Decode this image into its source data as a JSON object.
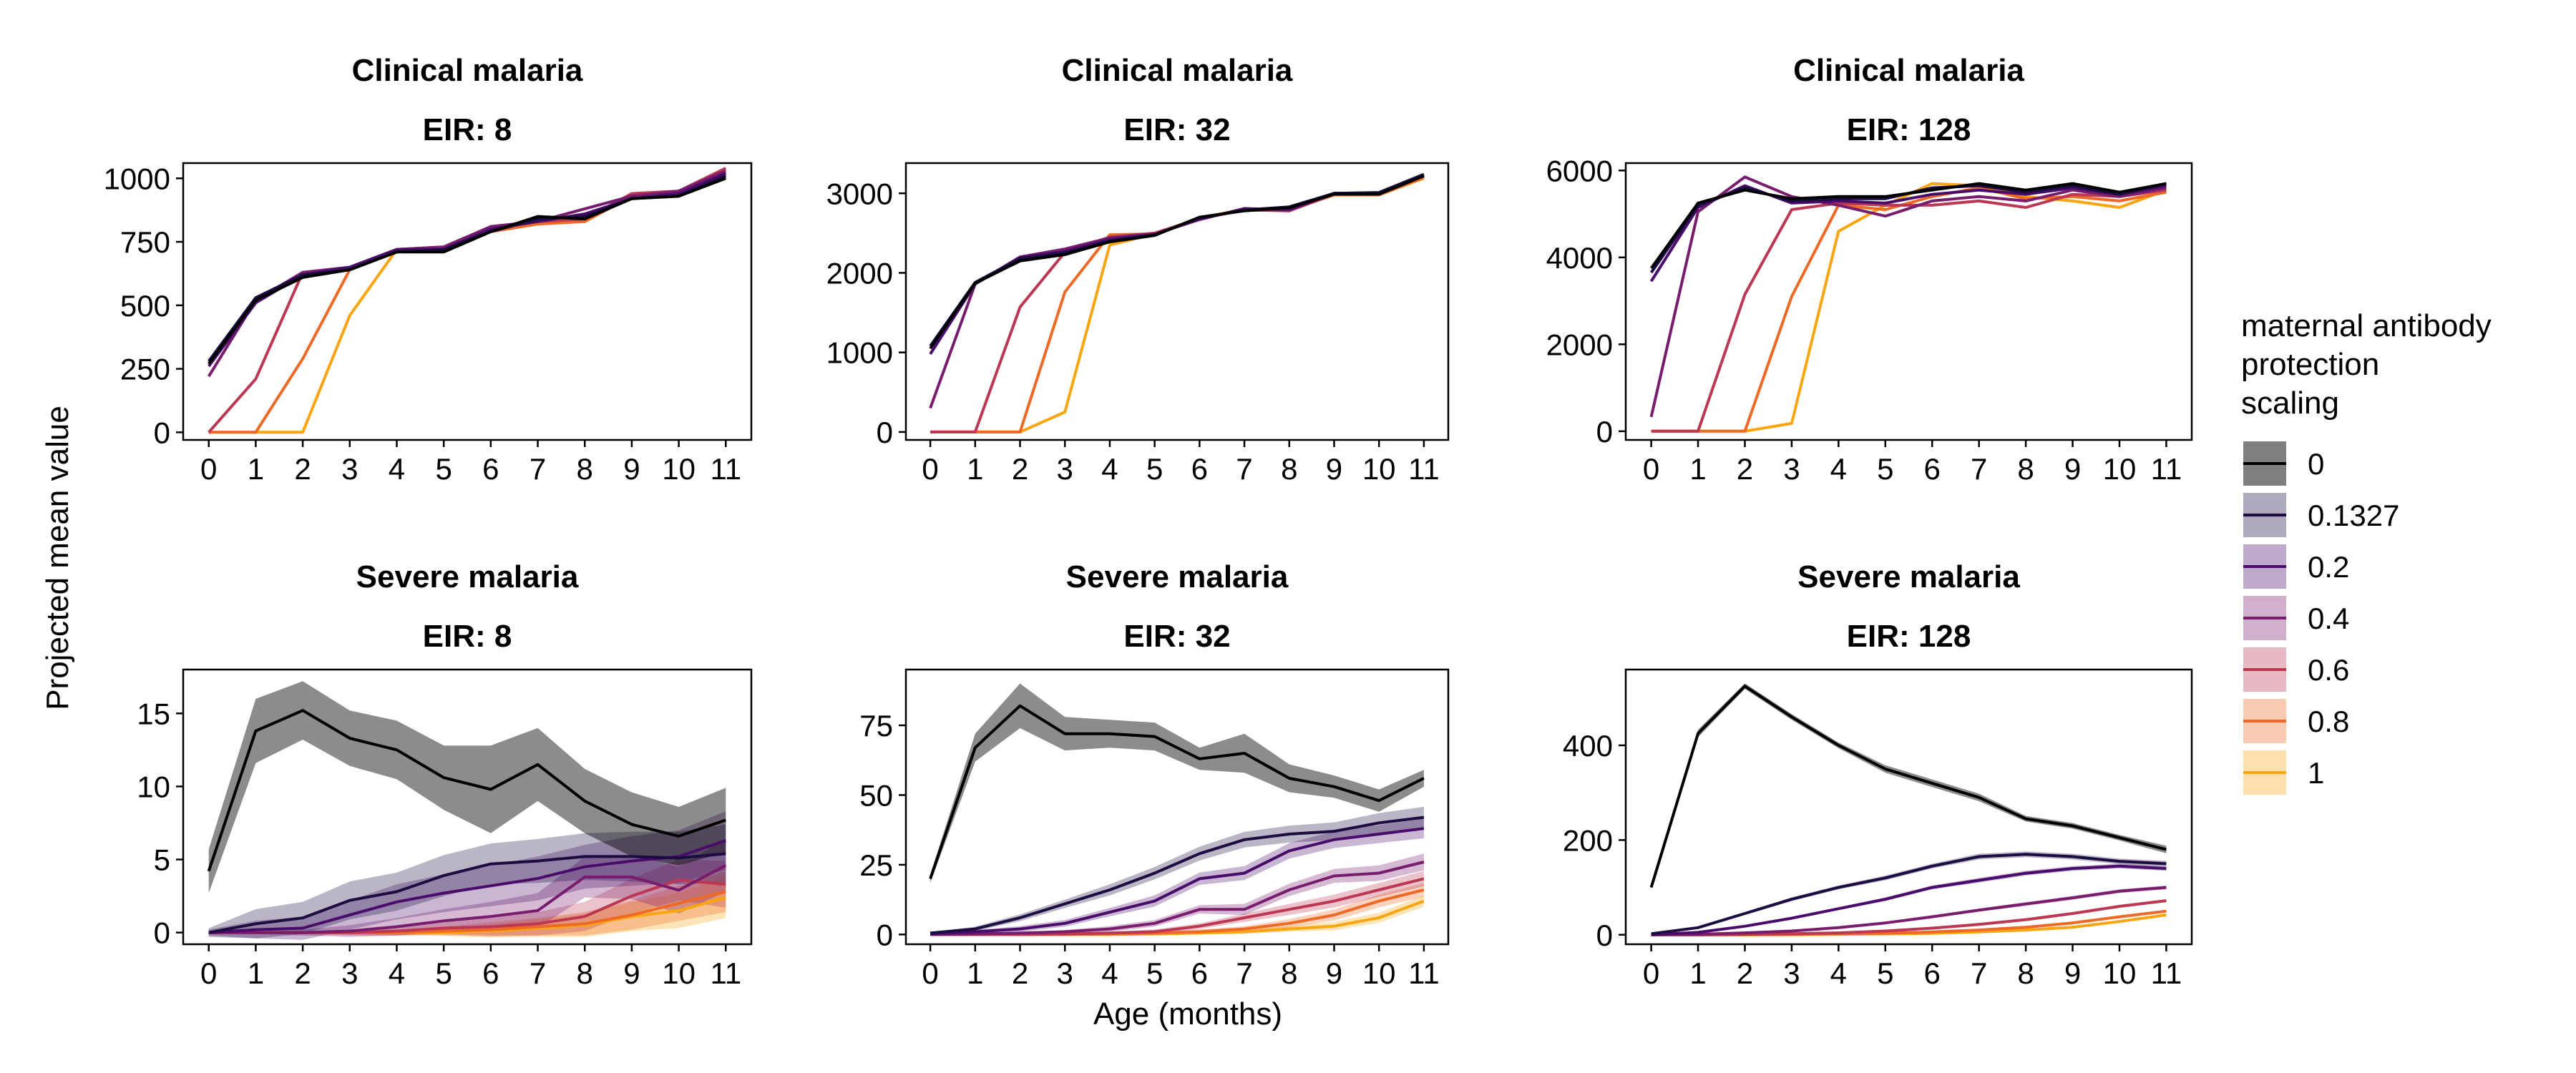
{
  "y_axis_label": "Projected mean value",
  "x_axis_label": "Age (months)",
  "legend": {
    "title_lines": [
      "maternal antibody",
      "protection",
      "scaling"
    ],
    "items": [
      {
        "label": "0",
        "color": "#000000"
      },
      {
        "label": "0.1327",
        "color": "#1b0c41"
      },
      {
        "label": "0.2",
        "color": "#4a0c6b"
      },
      {
        "label": "0.4",
        "color": "#781c6d"
      },
      {
        "label": "0.6",
        "color": "#bb3754"
      },
      {
        "label": "0.8",
        "color": "#ed6925"
      },
      {
        "label": "1",
        "color": "#f8a510"
      }
    ]
  },
  "chart_data": [
    {
      "type": "line",
      "title": "Clinical malaria",
      "subtitle": "EIR: 8",
      "xlabel": "",
      "ylabel": "",
      "x": [
        0,
        1,
        2,
        3,
        4,
        5,
        6,
        7,
        8,
        9,
        10,
        11
      ],
      "ylim": [
        -30,
        1060
      ],
      "yticks": [
        0,
        250,
        500,
        750,
        1000
      ],
      "series": [
        {
          "name": "0",
          "values": [
            270,
            520,
            610,
            640,
            710,
            710,
            790,
            850,
            840,
            920,
            930,
            1000
          ]
        },
        {
          "name": "0.1327",
          "values": [
            280,
            530,
            620,
            640,
            710,
            720,
            790,
            840,
            850,
            920,
            930,
            1010
          ]
        },
        {
          "name": "0.2",
          "values": [
            260,
            510,
            620,
            650,
            720,
            720,
            800,
            830,
            860,
            920,
            940,
            1020
          ]
        },
        {
          "name": "0.4",
          "values": [
            220,
            520,
            630,
            650,
            720,
            730,
            810,
            830,
            880,
            930,
            950,
            1030
          ]
        },
        {
          "name": "0.6",
          "values": [
            0,
            210,
            630,
            650,
            720,
            730,
            810,
            830,
            840,
            940,
            950,
            1040
          ]
        },
        {
          "name": "0.8",
          "values": [
            0,
            0,
            290,
            640,
            720,
            730,
            790,
            820,
            830,
            930,
            930,
            1020
          ]
        },
        {
          "name": "1",
          "values": [
            0,
            0,
            0,
            460,
            720,
            730,
            790,
            830,
            830,
            940,
            940,
            1020
          ]
        }
      ]
    },
    {
      "type": "line",
      "title": "Clinical malaria",
      "subtitle": "EIR: 32",
      "xlabel": "",
      "ylabel": "",
      "x": [
        0,
        1,
        2,
        3,
        4,
        5,
        6,
        7,
        8,
        9,
        10,
        11
      ],
      "ylim": [
        -100,
        3380
      ],
      "yticks": [
        0,
        1000,
        2000,
        3000
      ],
      "series": [
        {
          "name": "0",
          "values": [
            1050,
            1870,
            2150,
            2230,
            2390,
            2470,
            2700,
            2780,
            2820,
            2990,
            2990,
            3220
          ]
        },
        {
          "name": "0.1327",
          "values": [
            1080,
            1880,
            2180,
            2250,
            2400,
            2480,
            2690,
            2790,
            2830,
            3000,
            3010,
            3240
          ]
        },
        {
          "name": "0.2",
          "values": [
            980,
            1860,
            2190,
            2270,
            2420,
            2480,
            2680,
            2800,
            2800,
            3000,
            3000,
            3230
          ]
        },
        {
          "name": "0.4",
          "values": [
            300,
            1860,
            2200,
            2300,
            2440,
            2490,
            2670,
            2810,
            2790,
            3000,
            3000,
            3220
          ]
        },
        {
          "name": "0.6",
          "values": [
            0,
            0,
            1570,
            2260,
            2450,
            2500,
            2680,
            2790,
            2780,
            2990,
            2990,
            3220
          ]
        },
        {
          "name": "0.8",
          "values": [
            0,
            0,
            0,
            1760,
            2480,
            2490,
            2690,
            2790,
            2790,
            2980,
            2980,
            3200
          ]
        },
        {
          "name": "1",
          "values": [
            0,
            0,
            0,
            250,
            2350,
            2490,
            2690,
            2800,
            2790,
            2980,
            2980,
            3190
          ]
        }
      ]
    },
    {
      "type": "line",
      "title": "Clinical malaria",
      "subtitle": "EIR: 128",
      "xlabel": "",
      "ylabel": "",
      "x": [
        0,
        1,
        2,
        3,
        4,
        5,
        6,
        7,
        8,
        9,
        10,
        11
      ],
      "ylim": [
        -200,
        6170
      ],
      "yticks": [
        0,
        2000,
        4000,
        6000
      ],
      "series": [
        {
          "name": "0",
          "values": [
            3750,
            5250,
            5550,
            5350,
            5400,
            5400,
            5550,
            5700,
            5550,
            5700,
            5500,
            5700
          ]
        },
        {
          "name": "0.1327",
          "values": [
            3650,
            5200,
            5600,
            5300,
            5350,
            5350,
            5600,
            5650,
            5500,
            5650,
            5450,
            5700
          ]
        },
        {
          "name": "0.2",
          "values": [
            3450,
            5150,
            5650,
            5250,
            5300,
            5250,
            5450,
            5550,
            5450,
            5600,
            5450,
            5650
          ]
        },
        {
          "name": "0.4",
          "values": [
            330,
            5050,
            5850,
            5400,
            5200,
            4950,
            5300,
            5400,
            5300,
            5550,
            5400,
            5600
          ]
        },
        {
          "name": "0.6",
          "values": [
            0,
            0,
            3150,
            5100,
            5250,
            5200,
            5200,
            5300,
            5150,
            5450,
            5400,
            5550
          ]
        },
        {
          "name": "0.8",
          "values": [
            0,
            0,
            0,
            3100,
            5200,
            5100,
            5400,
            5600,
            5350,
            5400,
            5300,
            5500
          ]
        },
        {
          "name": "1",
          "values": [
            0,
            0,
            0,
            180,
            4600,
            5200,
            5700,
            5650,
            5400,
            5300,
            5150,
            5550
          ]
        }
      ]
    },
    {
      "type": "line",
      "title": "Severe malaria",
      "subtitle": "EIR: 8",
      "xlabel": "",
      "ylabel": "",
      "x": [
        0,
        1,
        2,
        3,
        4,
        5,
        6,
        7,
        8,
        9,
        10,
        11
      ],
      "ylim": [
        -0.8,
        18
      ],
      "yticks": [
        0,
        5,
        10,
        15
      ],
      "series": [
        {
          "name": "0",
          "values": [
            4.2,
            13.8,
            15.2,
            13.3,
            12.5,
            10.6,
            9.8,
            11.5,
            9.0,
            7.4,
            6.6,
            7.7
          ],
          "band": [
            1.5,
            2.2,
            2.0,
            1.9,
            2.0,
            2.2,
            3.0,
            2.5,
            2.2,
            2.2,
            2.0,
            2.2
          ]
        },
        {
          "name": "0.1327",
          "values": [
            0,
            0.6,
            1.0,
            2.2,
            2.8,
            3.9,
            4.7,
            4.9,
            5.2,
            5.2,
            5.1,
            5.4
          ],
          "band": [
            0.3,
            1.0,
            1.1,
            1.3,
            1.3,
            1.4,
            1.4,
            1.5,
            1.6,
            1.7,
            1.8,
            2.0
          ]
        },
        {
          "name": "0.2",
          "values": [
            0,
            0.2,
            0.3,
            1.2,
            2.1,
            2.7,
            3.2,
            3.7,
            4.5,
            4.9,
            5.2,
            6.3
          ],
          "band": [
            0.2,
            0.6,
            0.8,
            1.0,
            1.2,
            1.3,
            1.4,
            1.5,
            1.5,
            1.7,
            1.8,
            2.0
          ]
        },
        {
          "name": "0.4",
          "values": [
            0,
            0,
            0,
            0.1,
            0.4,
            0.8,
            1.1,
            1.5,
            3.8,
            3.8,
            2.9,
            4.6
          ],
          "band": [
            0.1,
            0.1,
            0.2,
            0.4,
            0.6,
            0.8,
            1.0,
            1.2,
            1.4,
            1.5,
            1.6,
            1.8
          ]
        },
        {
          "name": "0.6",
          "values": [
            0,
            0,
            0,
            0,
            0.1,
            0.3,
            0.4,
            0.6,
            1.1,
            2.5,
            3.6,
            3.3
          ],
          "band": [
            0.1,
            0.1,
            0.1,
            0.2,
            0.3,
            0.4,
            0.6,
            0.8,
            1.0,
            1.2,
            1.4,
            1.6
          ]
        },
        {
          "name": "0.8",
          "values": [
            0,
            0,
            0,
            0,
            0,
            0.1,
            0.2,
            0.4,
            0.6,
            1.2,
            2.0,
            2.8
          ],
          "band": [
            0.1,
            0.1,
            0.1,
            0.1,
            0.2,
            0.3,
            0.5,
            0.6,
            0.8,
            1.0,
            1.2,
            1.4
          ]
        },
        {
          "name": "1",
          "values": [
            0,
            0,
            0,
            0,
            0,
            0,
            0.1,
            0.3,
            0.5,
            1.1,
            1.5,
            2.4
          ],
          "band": [
            0.1,
            0.1,
            0.1,
            0.1,
            0.1,
            0.2,
            0.4,
            0.6,
            0.8,
            1.0,
            1.2,
            1.4
          ]
        }
      ]
    },
    {
      "type": "line",
      "title": "Severe malaria",
      "subtitle": "EIR: 32",
      "xlabel": "",
      "ylabel": "",
      "x": [
        0,
        1,
        2,
        3,
        4,
        5,
        6,
        7,
        8,
        9,
        10,
        11
      ],
      "ylim": [
        -3.5,
        95
      ],
      "yticks": [
        0,
        25,
        50,
        75
      ],
      "series": [
        {
          "name": "0",
          "values": [
            20,
            67,
            82,
            72,
            72,
            71,
            63,
            65,
            56,
            53,
            48,
            56
          ],
          "band": [
            1.5,
            5,
            8,
            6,
            5,
            5,
            4,
            7,
            5,
            4,
            4,
            3
          ]
        },
        {
          "name": "0.1327",
          "values": [
            0.5,
            2,
            6,
            11,
            16,
            22,
            29,
            34,
            36,
            37,
            40,
            42
          ],
          "band": [
            0.3,
            0.8,
            1.2,
            1.5,
            2,
            2.2,
            2.5,
            2.8,
            3,
            3.2,
            3.5,
            3.8
          ]
        },
        {
          "name": "0.2",
          "values": [
            0.2,
            1,
            2,
            4,
            8,
            12,
            20,
            22,
            30,
            34,
            36,
            38
          ],
          "band": [
            0.2,
            0.6,
            1,
            1.2,
            1.5,
            2,
            2.2,
            2.5,
            2.8,
            3,
            3.2,
            3.5
          ]
        },
        {
          "name": "0.4",
          "values": [
            0,
            0.2,
            0.5,
            1,
            2,
            4,
            9,
            9,
            16,
            21,
            22,
            26
          ],
          "band": [
            0.1,
            0.2,
            0.4,
            0.6,
            1,
            1.2,
            1.5,
            2,
            2.2,
            2.5,
            2.8,
            3
          ]
        },
        {
          "name": "0.6",
          "values": [
            0,
            0,
            0,
            0.2,
            0.5,
            1,
            3,
            6,
            9,
            12,
            16,
            20
          ],
          "band": [
            0.1,
            0.1,
            0.2,
            0.3,
            0.5,
            0.8,
            1,
            1.5,
            2,
            2.3,
            2.5,
            2.8
          ]
        },
        {
          "name": "0.8",
          "values": [
            0,
            0,
            0,
            0,
            0.2,
            0.5,
            1,
            2,
            4,
            7,
            12,
            16
          ],
          "band": [
            0.1,
            0.1,
            0.1,
            0.2,
            0.3,
            0.5,
            0.8,
            1,
            1.5,
            2,
            2.3,
            2.5
          ]
        },
        {
          "name": "1",
          "values": [
            0,
            0,
            0,
            0,
            0,
            0.2,
            0.5,
            1,
            2,
            3,
            6,
            12
          ],
          "band": [
            0.1,
            0.1,
            0.1,
            0.1,
            0.2,
            0.3,
            0.5,
            0.8,
            1,
            1.5,
            1.8,
            2
          ]
        }
      ]
    },
    {
      "type": "line",
      "title": "Severe malaria",
      "subtitle": "EIR: 128",
      "xlabel": "",
      "ylabel": "",
      "x": [
        0,
        1,
        2,
        3,
        4,
        5,
        6,
        7,
        8,
        9,
        10,
        11
      ],
      "ylim": [
        -20,
        560
      ],
      "yticks": [
        0,
        200,
        400
      ],
      "series": [
        {
          "name": "0",
          "values": [
            100,
            425,
            525,
            460,
            400,
            350,
            320,
            290,
            245,
            230,
            205,
            180
          ],
          "band": [
            3,
            8,
            6,
            6,
            6,
            8,
            8,
            8,
            6,
            6,
            6,
            8
          ]
        },
        {
          "name": "0.1327",
          "values": [
            2,
            15,
            45,
            75,
            100,
            120,
            145,
            165,
            170,
            165,
            155,
            150
          ],
          "band": [
            1,
            2,
            3,
            4,
            4,
            5,
            5,
            6,
            6,
            6,
            6,
            6
          ]
        },
        {
          "name": "0.2",
          "values": [
            0,
            5,
            18,
            35,
            55,
            75,
            100,
            115,
            130,
            140,
            145,
            140
          ],
          "band": [
            0.5,
            1,
            2,
            3,
            3,
            4,
            4,
            5,
            5,
            5,
            5,
            5
          ]
        },
        {
          "name": "0.4",
          "values": [
            0,
            1,
            4,
            8,
            15,
            25,
            38,
            52,
            65,
            78,
            92,
            100
          ],
          "band": [
            0.3,
            0.5,
            1,
            1.5,
            2,
            2.5,
            3,
            3.5,
            4,
            4,
            4,
            4
          ]
        },
        {
          "name": "0.6",
          "values": [
            0,
            0,
            1,
            2,
            4,
            8,
            14,
            22,
            32,
            45,
            60,
            72
          ],
          "band": [
            0.2,
            0.3,
            0.5,
            0.8,
            1,
            1.5,
            2,
            2.5,
            3,
            3,
            3,
            3
          ]
        },
        {
          "name": "0.8",
          "values": [
            0,
            0,
            0,
            1,
            2,
            3,
            6,
            10,
            16,
            25,
            38,
            50
          ],
          "band": [
            0.2,
            0.2,
            0.3,
            0.5,
            0.8,
            1,
            1.5,
            2,
            2.5,
            2.5,
            2.5,
            2.5
          ]
        },
        {
          "name": "1",
          "values": [
            0,
            0,
            0,
            0,
            1,
            2,
            3,
            6,
            10,
            16,
            28,
            42
          ],
          "band": [
            0.1,
            0.2,
            0.2,
            0.3,
            0.5,
            0.8,
            1,
            1.5,
            2,
            2.2,
            2.3,
            2.5
          ]
        }
      ]
    }
  ]
}
